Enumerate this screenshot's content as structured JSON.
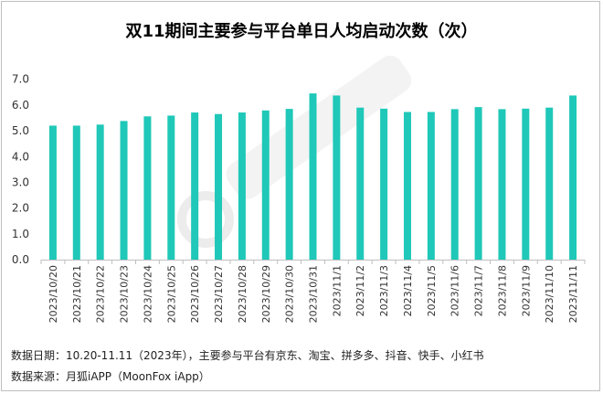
{
  "chart_data": {
    "type": "bar",
    "title": "双11期间主要参与平台单日人均启动次数（次）",
    "categories": [
      "2023/10/20",
      "2023/10/21",
      "2023/10/22",
      "2023/10/23",
      "2023/10/24",
      "2023/10/25",
      "2023/10/26",
      "2023/10/27",
      "2023/10/28",
      "2023/10/29",
      "2023/10/30",
      "2023/10/31",
      "2023/11/1",
      "2023/11/2",
      "2023/11/3",
      "2023/11/4",
      "2023/11/5",
      "2023/11/6",
      "2023/11/7",
      "2023/11/8",
      "2023/11/9",
      "2023/11/10",
      "2023/11/11"
    ],
    "values": [
      5.2,
      5.2,
      5.24,
      5.38,
      5.56,
      5.59,
      5.71,
      5.65,
      5.71,
      5.79,
      5.85,
      6.45,
      6.37,
      5.9,
      5.86,
      5.73,
      5.73,
      5.84,
      5.92,
      5.84,
      5.86,
      5.9,
      6.37
    ],
    "ylim": [
      0,
      7
    ],
    "yticks": [
      "0.0",
      "1.0",
      "2.0",
      "3.0",
      "4.0",
      "5.0",
      "6.0",
      "7.0"
    ],
    "xlabel": "",
    "ylabel": "",
    "grid": false,
    "legend": "none",
    "bar_color": "#1fc8b8"
  },
  "footnotes": {
    "date_range": "数据日期：10.20-11.11（2023年），主要参与平台有京东、淘宝、拼多多、抖音、快手、小红书",
    "source": "数据来源：月狐iAPP（MoonFox iApp）"
  },
  "watermark": "MoonFox"
}
